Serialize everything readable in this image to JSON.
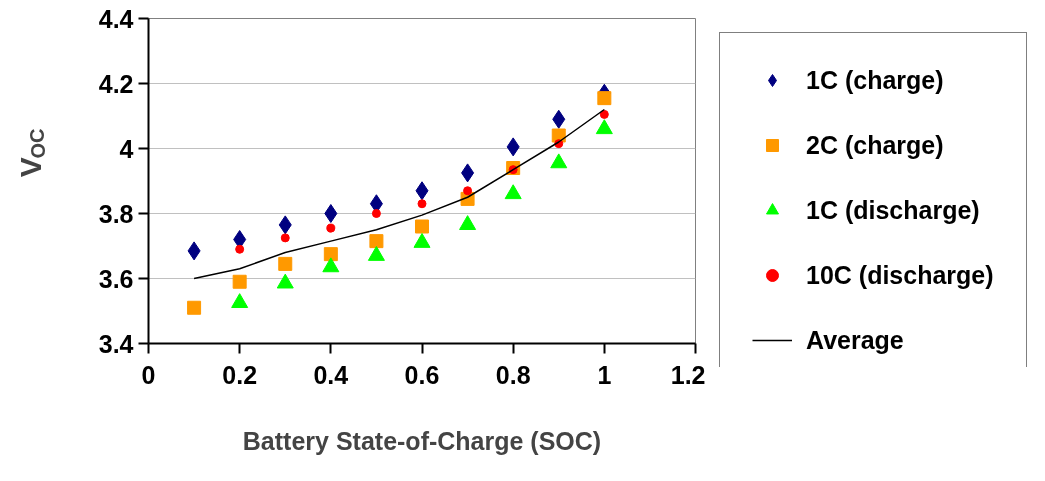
{
  "chart_data": {
    "type": "scatter",
    "xlabel": "Battery State-of-Charge (SOC)",
    "ylabel": "V$_{OC}$",
    "x": [
      0.1,
      0.2,
      0.3,
      0.4,
      0.5,
      0.6,
      0.7,
      0.8,
      0.9,
      1.0
    ],
    "series": [
      {
        "name": "1C (charge)",
        "color": "#000080",
        "marker": "diamond",
        "values": [
          3.685,
          3.72,
          3.765,
          3.8,
          3.83,
          3.87,
          3.925,
          4.005,
          4.09,
          4.17
        ]
      },
      {
        "name": "2C (charge)",
        "color": "#ff9900",
        "marker": "square",
        "values": [
          3.51,
          3.59,
          3.645,
          3.675,
          3.715,
          3.76,
          3.845,
          3.94,
          4.04,
          4.155
        ]
      },
      {
        "name": "1C (discharge)",
        "color": "#00ff00",
        "marker": "triangle",
        "values": [
          null,
          3.525,
          3.585,
          3.635,
          3.67,
          3.71,
          3.765,
          3.86,
          3.955,
          4.06
        ]
      },
      {
        "name": "10C (discharge)",
        "color": "#ff0000",
        "marker": "circle",
        "values": [
          null,
          3.69,
          3.725,
          3.755,
          3.8,
          3.83,
          3.87,
          3.935,
          4.015,
          4.105
        ]
      },
      {
        "name": "Average",
        "type": "line",
        "color": "#000000",
        "marker": "none",
        "values": [
          3.6,
          3.63,
          3.68,
          3.715,
          3.75,
          3.795,
          3.85,
          3.935,
          4.02,
          4.12
        ]
      }
    ],
    "xlim": [
      0,
      1.2
    ],
    "xticks": [
      0,
      0.2,
      0.4,
      0.6,
      0.8,
      1,
      1.2
    ],
    "ylim": [
      3.4,
      4.4
    ],
    "yticks": [
      3.4,
      3.6,
      3.8,
      4,
      4.2,
      4.4
    ],
    "grid": "y",
    "legend": "right"
  }
}
